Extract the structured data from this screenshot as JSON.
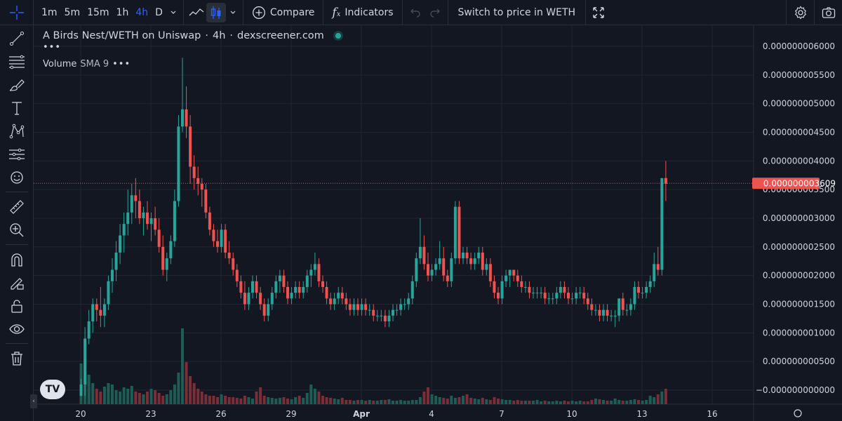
{
  "toolbar": {
    "timeframes": [
      "1m",
      "5m",
      "15m",
      "1h",
      "4h",
      "D"
    ],
    "active_timeframe": "4h",
    "compare_label": "Compare",
    "indicators_label": "Indicators",
    "switch_label": "Switch to price in WETH"
  },
  "legend": {
    "symbol": "A Birds Nest/WETH on Uniswap",
    "interval": "4h",
    "source": "dexscreener.com",
    "more": "•••",
    "volume_label": "Volume",
    "volume_sub": "SMA 9",
    "volume_more": "•••"
  },
  "logo_text": "TV",
  "colors": {
    "background": "#131722",
    "grid": "#232632",
    "up": "#26a69a",
    "down": "#ef5350",
    "up_volume": "#1d5d56",
    "down_volume": "#7a2e37",
    "axis_text": "#d1d4dc",
    "price_line": "#ef5350"
  },
  "chart_data": {
    "type": "candlestick",
    "y_axis_ticks": [
      "0.000000006000",
      "0.000000005500",
      "0.000000005000",
      "0.000000004500",
      "0.000000004000",
      "0.000000003500",
      "0.000000003000",
      "0.000000002500",
      "0.000000002000",
      "0.000000001500",
      "0.000000001000",
      "0.000000000500",
      "−0.000000000000"
    ],
    "ylim": [
      -2e-13,
      6.3e-09
    ],
    "x_axis_ticks": [
      {
        "label": "20",
        "day": 0
      },
      {
        "label": "23",
        "day": 3
      },
      {
        "label": "26",
        "day": 6
      },
      {
        "label": "29",
        "day": 9
      },
      {
        "label": "Apr",
        "day": 12
      },
      {
        "label": "4",
        "day": 15
      },
      {
        "label": "7",
        "day": 18
      },
      {
        "label": "10",
        "day": 21
      },
      {
        "label": "13",
        "day": 24
      },
      {
        "label": "16",
        "day": 27
      }
    ],
    "x_range_days": [
      -0.15,
      27.4
    ],
    "bars_per_day": 6,
    "last_price_label": "0.000000003609",
    "last_price": 3.609e-09,
    "candles_e9": [
      [
        -0.1,
        0.2,
        -0.1,
        0.1
      ],
      [
        0.1,
        1.1,
        -0.1,
        0.9
      ],
      [
        0.9,
        1.4,
        0.8,
        1.2
      ],
      [
        1.2,
        1.6,
        1.0,
        1.5
      ],
      [
        1.5,
        1.6,
        1.2,
        1.4
      ],
      [
        1.4,
        1.8,
        1.1,
        1.3
      ],
      [
        1.3,
        1.6,
        1.1,
        1.5
      ],
      [
        1.5,
        2.0,
        1.4,
        1.9
      ],
      [
        1.9,
        2.3,
        1.7,
        2.1
      ],
      [
        2.1,
        2.6,
        1.9,
        2.4
      ],
      [
        2.4,
        2.9,
        2.2,
        2.7
      ],
      [
        2.7,
        3.1,
        2.4,
        2.9
      ],
      [
        2.9,
        3.5,
        2.7,
        3.1
      ],
      [
        3.1,
        3.6,
        2.9,
        3.4
      ],
      [
        3.4,
        3.7,
        3.0,
        3.3
      ],
      [
        3.3,
        3.5,
        2.9,
        3.0
      ],
      [
        3.0,
        3.2,
        2.7,
        3.1
      ],
      [
        3.1,
        3.3,
        2.8,
        2.9
      ],
      [
        2.9,
        3.1,
        2.6,
        3.0
      ],
      [
        3.0,
        3.2,
        2.7,
        2.8
      ],
      [
        2.8,
        3.0,
        2.4,
        2.5
      ],
      [
        2.5,
        2.7,
        2.0,
        2.1
      ],
      [
        2.1,
        2.4,
        1.9,
        2.3
      ],
      [
        2.3,
        2.7,
        2.2,
        2.6
      ],
      [
        2.6,
        3.5,
        2.5,
        3.3
      ],
      [
        3.3,
        4.8,
        3.2,
        4.6
      ],
      [
        4.6,
        5.8,
        4.5,
        4.9
      ],
      [
        4.9,
        5.3,
        4.4,
        4.6
      ],
      [
        4.6,
        4.8,
        3.6,
        3.9
      ],
      [
        3.9,
        4.1,
        3.5,
        3.7
      ],
      [
        3.7,
        3.9,
        3.4,
        3.6
      ],
      [
        3.6,
        3.7,
        3.2,
        3.5
      ],
      [
        3.5,
        3.6,
        3.0,
        3.1
      ],
      [
        3.1,
        3.2,
        2.7,
        2.8
      ],
      [
        2.8,
        2.9,
        2.5,
        2.6
      ],
      [
        2.6,
        2.8,
        2.4,
        2.5
      ],
      [
        2.5,
        2.9,
        2.4,
        2.8
      ],
      [
        2.8,
        2.9,
        2.3,
        2.4
      ],
      [
        2.4,
        2.6,
        2.2,
        2.3
      ],
      [
        2.3,
        2.4,
        2.0,
        2.1
      ],
      [
        2.1,
        2.2,
        1.8,
        1.9
      ],
      [
        1.9,
        2.0,
        1.6,
        1.7
      ],
      [
        1.7,
        1.9,
        1.4,
        1.5
      ],
      [
        1.5,
        1.8,
        1.4,
        1.7
      ],
      [
        1.7,
        2.0,
        1.6,
        1.9
      ],
      [
        1.9,
        2.0,
        1.6,
        1.7
      ],
      [
        1.7,
        1.8,
        1.4,
        1.5
      ],
      [
        1.5,
        1.6,
        1.2,
        1.3
      ],
      [
        1.3,
        1.6,
        1.2,
        1.5
      ],
      [
        1.5,
        1.8,
        1.4,
        1.7
      ],
      [
        1.7,
        2.0,
        1.6,
        1.9
      ],
      [
        1.9,
        2.1,
        1.7,
        2.0
      ],
      [
        2.0,
        2.1,
        1.7,
        1.8
      ],
      [
        1.8,
        1.9,
        1.5,
        1.6
      ],
      [
        1.6,
        1.8,
        1.5,
        1.7
      ],
      [
        1.7,
        1.9,
        1.6,
        1.8
      ],
      [
        1.8,
        1.9,
        1.6,
        1.7
      ],
      [
        1.7,
        1.9,
        1.6,
        1.8
      ],
      [
        1.8,
        2.1,
        1.7,
        2.0
      ],
      [
        2.0,
        2.2,
        1.8,
        2.1
      ],
      [
        2.1,
        2.4,
        2.0,
        2.2
      ],
      [
        2.2,
        2.3,
        1.8,
        1.9
      ],
      [
        1.9,
        2.0,
        1.7,
        1.8
      ],
      [
        1.8,
        1.9,
        1.5,
        1.6
      ],
      [
        1.6,
        1.7,
        1.4,
        1.5
      ],
      [
        1.5,
        1.7,
        1.4,
        1.6
      ],
      [
        1.6,
        1.8,
        1.5,
        1.7
      ],
      [
        1.7,
        1.8,
        1.5,
        1.6
      ],
      [
        1.6,
        1.7,
        1.4,
        1.5
      ],
      [
        1.5,
        1.6,
        1.3,
        1.4
      ],
      [
        1.4,
        1.6,
        1.3,
        1.5
      ],
      [
        1.5,
        1.6,
        1.3,
        1.4
      ],
      [
        1.4,
        1.6,
        1.3,
        1.5
      ],
      [
        1.5,
        1.6,
        1.3,
        1.4
      ],
      [
        1.4,
        1.5,
        1.3,
        1.4
      ],
      [
        1.4,
        1.5,
        1.2,
        1.3
      ],
      [
        1.3,
        1.4,
        1.2,
        1.3
      ],
      [
        1.3,
        1.4,
        1.2,
        1.3
      ],
      [
        1.3,
        1.4,
        1.1,
        1.2
      ],
      [
        1.2,
        1.4,
        1.1,
        1.3
      ],
      [
        1.3,
        1.5,
        1.2,
        1.4
      ],
      [
        1.4,
        1.5,
        1.3,
        1.4
      ],
      [
        1.4,
        1.6,
        1.3,
        1.5
      ],
      [
        1.5,
        1.6,
        1.4,
        1.5
      ],
      [
        1.5,
        1.7,
        1.4,
        1.6
      ],
      [
        1.6,
        2.0,
        1.5,
        1.9
      ],
      [
        1.9,
        2.4,
        1.8,
        2.3
      ],
      [
        2.3,
        3.0,
        2.2,
        2.5
      ],
      [
        2.5,
        2.7,
        2.1,
        2.2
      ],
      [
        2.2,
        2.4,
        1.9,
        2.0
      ],
      [
        2.0,
        2.2,
        1.9,
        2.1
      ],
      [
        2.1,
        2.3,
        2.0,
        2.2
      ],
      [
        2.2,
        2.6,
        2.1,
        2.3
      ],
      [
        2.3,
        2.5,
        1.9,
        2.0
      ],
      [
        2.0,
        2.1,
        1.8,
        1.9
      ],
      [
        1.9,
        2.4,
        1.8,
        2.3
      ],
      [
        2.3,
        3.3,
        2.2,
        3.2
      ],
      [
        3.2,
        3.3,
        2.2,
        2.3
      ],
      [
        2.3,
        2.5,
        2.2,
        2.4
      ],
      [
        2.4,
        2.5,
        2.2,
        2.3
      ],
      [
        2.3,
        2.4,
        2.1,
        2.2
      ],
      [
        2.2,
        2.4,
        2.1,
        2.3
      ],
      [
        2.3,
        2.5,
        2.2,
        2.4
      ],
      [
        2.4,
        2.5,
        2.0,
        2.1
      ],
      [
        2.1,
        2.3,
        2.0,
        2.2
      ],
      [
        2.2,
        2.3,
        1.8,
        1.9
      ],
      [
        1.9,
        2.0,
        1.6,
        1.7
      ],
      [
        1.7,
        1.8,
        1.5,
        1.6
      ],
      [
        1.6,
        2.0,
        1.5,
        1.9
      ],
      [
        1.9,
        2.1,
        1.8,
        2.0
      ],
      [
        2.0,
        2.1,
        1.8,
        2.1
      ],
      [
        2.1,
        2.1,
        1.9,
        2.0
      ],
      [
        2.0,
        2.1,
        1.8,
        1.9
      ],
      [
        1.9,
        2.0,
        1.7,
        1.8
      ],
      [
        1.8,
        1.9,
        1.7,
        1.8
      ],
      [
        1.8,
        1.9,
        1.6,
        1.7
      ],
      [
        1.7,
        1.8,
        1.6,
        1.7
      ],
      [
        1.7,
        1.8,
        1.6,
        1.7
      ],
      [
        1.7,
        1.8,
        1.6,
        1.7
      ],
      [
        1.7,
        1.8,
        1.5,
        1.6
      ],
      [
        1.6,
        1.7,
        1.5,
        1.6
      ],
      [
        1.6,
        1.7,
        1.5,
        1.6
      ],
      [
        1.6,
        1.8,
        1.5,
        1.7
      ],
      [
        1.7,
        1.9,
        1.6,
        1.8
      ],
      [
        1.8,
        1.9,
        1.6,
        1.7
      ],
      [
        1.7,
        1.8,
        1.5,
        1.6
      ],
      [
        1.6,
        1.7,
        1.5,
        1.6
      ],
      [
        1.6,
        1.8,
        1.5,
        1.7
      ],
      [
        1.7,
        1.8,
        1.6,
        1.7
      ],
      [
        1.7,
        1.8,
        1.5,
        1.6
      ],
      [
        1.6,
        1.7,
        1.4,
        1.5
      ],
      [
        1.5,
        1.6,
        1.3,
        1.4
      ],
      [
        1.4,
        1.5,
        1.3,
        1.4
      ],
      [
        1.4,
        1.5,
        1.2,
        1.3
      ],
      [
        1.3,
        1.5,
        1.2,
        1.4
      ],
      [
        1.4,
        1.5,
        1.2,
        1.3
      ],
      [
        1.3,
        1.4,
        1.2,
        1.3
      ],
      [
        1.3,
        1.4,
        1.1,
        1.3
      ],
      [
        1.3,
        1.6,
        1.2,
        1.6
      ],
      [
        1.6,
        1.7,
        1.3,
        1.4
      ],
      [
        1.4,
        1.5,
        1.3,
        1.4
      ],
      [
        1.4,
        1.6,
        1.3,
        1.5
      ],
      [
        1.5,
        1.9,
        1.4,
        1.8
      ],
      [
        1.8,
        1.9,
        1.6,
        1.7
      ],
      [
        1.7,
        1.8,
        1.6,
        1.7
      ],
      [
        1.7,
        1.9,
        1.6,
        1.8
      ],
      [
        1.8,
        2.0,
        1.7,
        1.9
      ],
      [
        1.9,
        2.4,
        1.8,
        2.2
      ],
      [
        2.2,
        2.5,
        2.0,
        2.1
      ],
      [
        2.1,
        3.7,
        2.0,
        3.7
      ],
      [
        3.7,
        4.0,
        3.3,
        3.6
      ]
    ],
    "volume_e9_bars": "relative heights read from chart; drawn proportionally"
  }
}
